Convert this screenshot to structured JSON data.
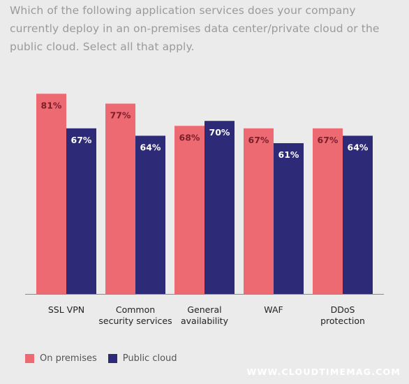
{
  "question": "Which of the following application services does your company currently deploy in an on-premises data center/private cloud or the public cloud. Select all that apply.",
  "watermark": "WWW.CLOUDTIMEMAG.COM",
  "colors": {
    "on_premises": "#ee6a72",
    "public_cloud": "#2d2a78",
    "background": "#ebebeb"
  },
  "chart_data": {
    "type": "bar",
    "title": "",
    "xlabel": "",
    "ylabel": "",
    "ylim": [
      0,
      100
    ],
    "grid": false,
    "legend": "bottom-left",
    "categories": [
      [
        "SSL VPN"
      ],
      [
        "Common",
        "security services"
      ],
      [
        "General",
        "availability"
      ],
      [
        "WAF"
      ],
      [
        "DDoS",
        "protection"
      ]
    ],
    "series": [
      {
        "name": "On premises",
        "values": [
          81,
          77,
          68,
          67,
          67
        ],
        "labels": [
          "81%",
          "77%",
          "68%",
          "67%",
          "67%"
        ]
      },
      {
        "name": "Public cloud",
        "values": [
          67,
          64,
          70,
          61,
          64
        ],
        "labels": [
          "67%",
          "64%",
          "70%",
          "61%",
          "64%"
        ]
      }
    ]
  }
}
